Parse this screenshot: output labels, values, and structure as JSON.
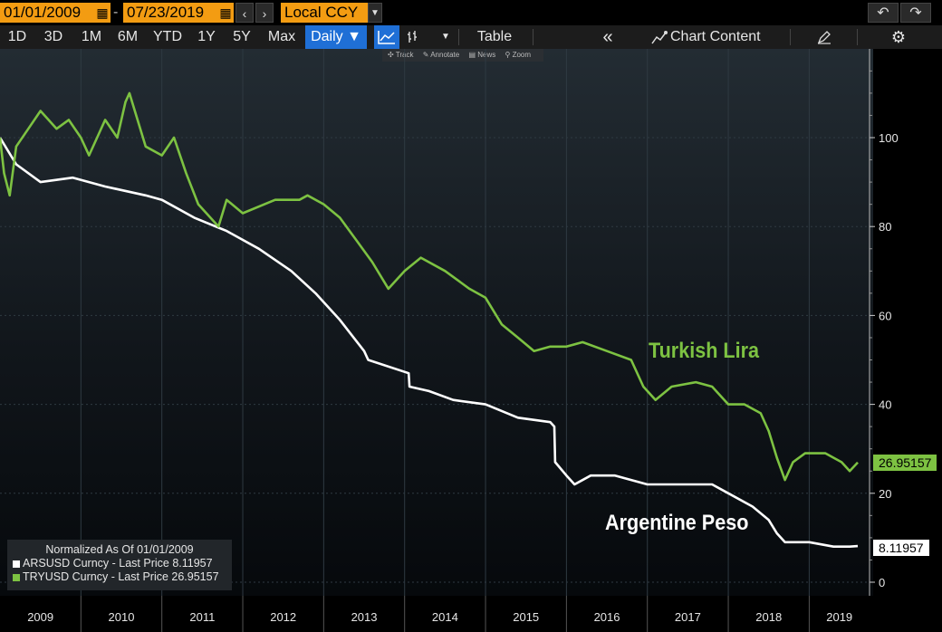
{
  "toolbar_top": {
    "start_date": "01/01/2009",
    "end_date": "07/23/2019",
    "dash": "-",
    "currency": "Local CCY",
    "calendar_icon": "calendar-icon",
    "prev_icon": "chevron-left-icon",
    "next_icon": "chevron-right-icon",
    "dropdown_icon": "caret-down-icon",
    "undo_icon": "undo-icon",
    "redo_icon": "redo-icon"
  },
  "toolbar": {
    "ranges": [
      "1D",
      "3D",
      "1M",
      "6M",
      "YTD",
      "1Y",
      "5Y",
      "Max"
    ],
    "frequency": "Daily ▼",
    "line_icon": "line-chart-icon",
    "bar_icon": "ohlc-icon",
    "more_icon": "caret-down-icon",
    "table": "Table",
    "collapse_icon": "double-chevron-left-icon",
    "chart_content": "Chart Content",
    "chart_content_icon": "chart-content-icon",
    "edit_icon": "edit-icon",
    "settings_icon": "gear-icon"
  },
  "subtools": [
    "Track",
    "Annotate",
    "News",
    "Zoom"
  ],
  "legend": {
    "title": "Normalized As Of 01/01/2009",
    "items": [
      {
        "label": "ARSUSD Curncy - Last Price 8.11957",
        "color": "#ffffff"
      },
      {
        "label": "TRYUSD Curncy - Last Price 26.95157",
        "color": "#7dc242"
      }
    ]
  },
  "chart_data": {
    "type": "line",
    "xlabels": [
      "2009",
      "2010",
      "2011",
      "2012",
      "2013",
      "2014",
      "2015",
      "2016",
      "2017",
      "2018",
      "2019"
    ],
    "yticks": [
      0,
      20,
      40,
      60,
      80,
      100
    ],
    "ylim": [
      -2,
      118
    ],
    "xlim": [
      2009.0,
      2019.9
    ],
    "grid": true,
    "series": [
      {
        "name": "Argentine Peso",
        "color": "#ffffff",
        "last_label": "8.11957",
        "points": [
          [
            2009.0,
            100
          ],
          [
            2009.2,
            94
          ],
          [
            2009.5,
            90
          ],
          [
            2009.9,
            91
          ],
          [
            2010.3,
            89
          ],
          [
            2010.8,
            87
          ],
          [
            2011.0,
            86
          ],
          [
            2011.4,
            82
          ],
          [
            2011.8,
            79
          ],
          [
            2012.2,
            75
          ],
          [
            2012.6,
            70
          ],
          [
            2012.9,
            65
          ],
          [
            2013.2,
            59
          ],
          [
            2013.5,
            52
          ],
          [
            2013.55,
            50
          ],
          [
            2014.05,
            47
          ],
          [
            2014.06,
            44
          ],
          [
            2014.3,
            43
          ],
          [
            2014.6,
            41
          ],
          [
            2015.0,
            40
          ],
          [
            2015.4,
            37
          ],
          [
            2015.8,
            36
          ],
          [
            2015.85,
            35
          ],
          [
            2015.86,
            27
          ],
          [
            2016.0,
            24
          ],
          [
            2016.1,
            22
          ],
          [
            2016.3,
            24
          ],
          [
            2016.6,
            24
          ],
          [
            2017.0,
            22
          ],
          [
            2017.4,
            22
          ],
          [
            2017.8,
            22
          ],
          [
            2018.0,
            20
          ],
          [
            2018.3,
            17
          ],
          [
            2018.5,
            14
          ],
          [
            2018.6,
            11
          ],
          [
            2018.7,
            9
          ],
          [
            2019.0,
            9
          ],
          [
            2019.3,
            8
          ],
          [
            2019.5,
            8
          ],
          [
            2019.6,
            8.12
          ]
        ]
      },
      {
        "name": "Turkish Lira",
        "color": "#7dc242",
        "last_label": "26.95157",
        "points": [
          [
            2009.0,
            100
          ],
          [
            2009.05,
            92
          ],
          [
            2009.12,
            87
          ],
          [
            2009.2,
            98
          ],
          [
            2009.35,
            102
          ],
          [
            2009.5,
            106
          ],
          [
            2009.7,
            102
          ],
          [
            2009.85,
            104
          ],
          [
            2010.0,
            100
          ],
          [
            2010.1,
            96
          ],
          [
            2010.3,
            104
          ],
          [
            2010.45,
            100
          ],
          [
            2010.55,
            108
          ],
          [
            2010.6,
            110
          ],
          [
            2010.8,
            98
          ],
          [
            2011.0,
            96
          ],
          [
            2011.15,
            100
          ],
          [
            2011.3,
            92
          ],
          [
            2011.45,
            85
          ],
          [
            2011.6,
            82
          ],
          [
            2011.7,
            80
          ],
          [
            2011.8,
            86
          ],
          [
            2012.0,
            83
          ],
          [
            2012.4,
            86
          ],
          [
            2012.7,
            86
          ],
          [
            2012.8,
            87
          ],
          [
            2013.0,
            85
          ],
          [
            2013.2,
            82
          ],
          [
            2013.4,
            77
          ],
          [
            2013.6,
            72
          ],
          [
            2013.8,
            66
          ],
          [
            2014.0,
            70
          ],
          [
            2014.2,
            73
          ],
          [
            2014.5,
            70
          ],
          [
            2014.8,
            66
          ],
          [
            2015.0,
            64
          ],
          [
            2015.2,
            58
          ],
          [
            2015.4,
            55
          ],
          [
            2015.6,
            52
          ],
          [
            2015.8,
            53
          ],
          [
            2016.0,
            53
          ],
          [
            2016.2,
            54
          ],
          [
            2016.5,
            52
          ],
          [
            2016.8,
            50
          ],
          [
            2016.95,
            44
          ],
          [
            2017.1,
            41
          ],
          [
            2017.3,
            44
          ],
          [
            2017.6,
            45
          ],
          [
            2017.8,
            44
          ],
          [
            2018.0,
            40
          ],
          [
            2018.2,
            40
          ],
          [
            2018.4,
            38
          ],
          [
            2018.5,
            34
          ],
          [
            2018.6,
            28
          ],
          [
            2018.7,
            23
          ],
          [
            2018.8,
            27
          ],
          [
            2018.95,
            29
          ],
          [
            2019.2,
            29
          ],
          [
            2019.4,
            27
          ],
          [
            2019.5,
            25
          ],
          [
            2019.6,
            26.95
          ]
        ]
      }
    ]
  }
}
